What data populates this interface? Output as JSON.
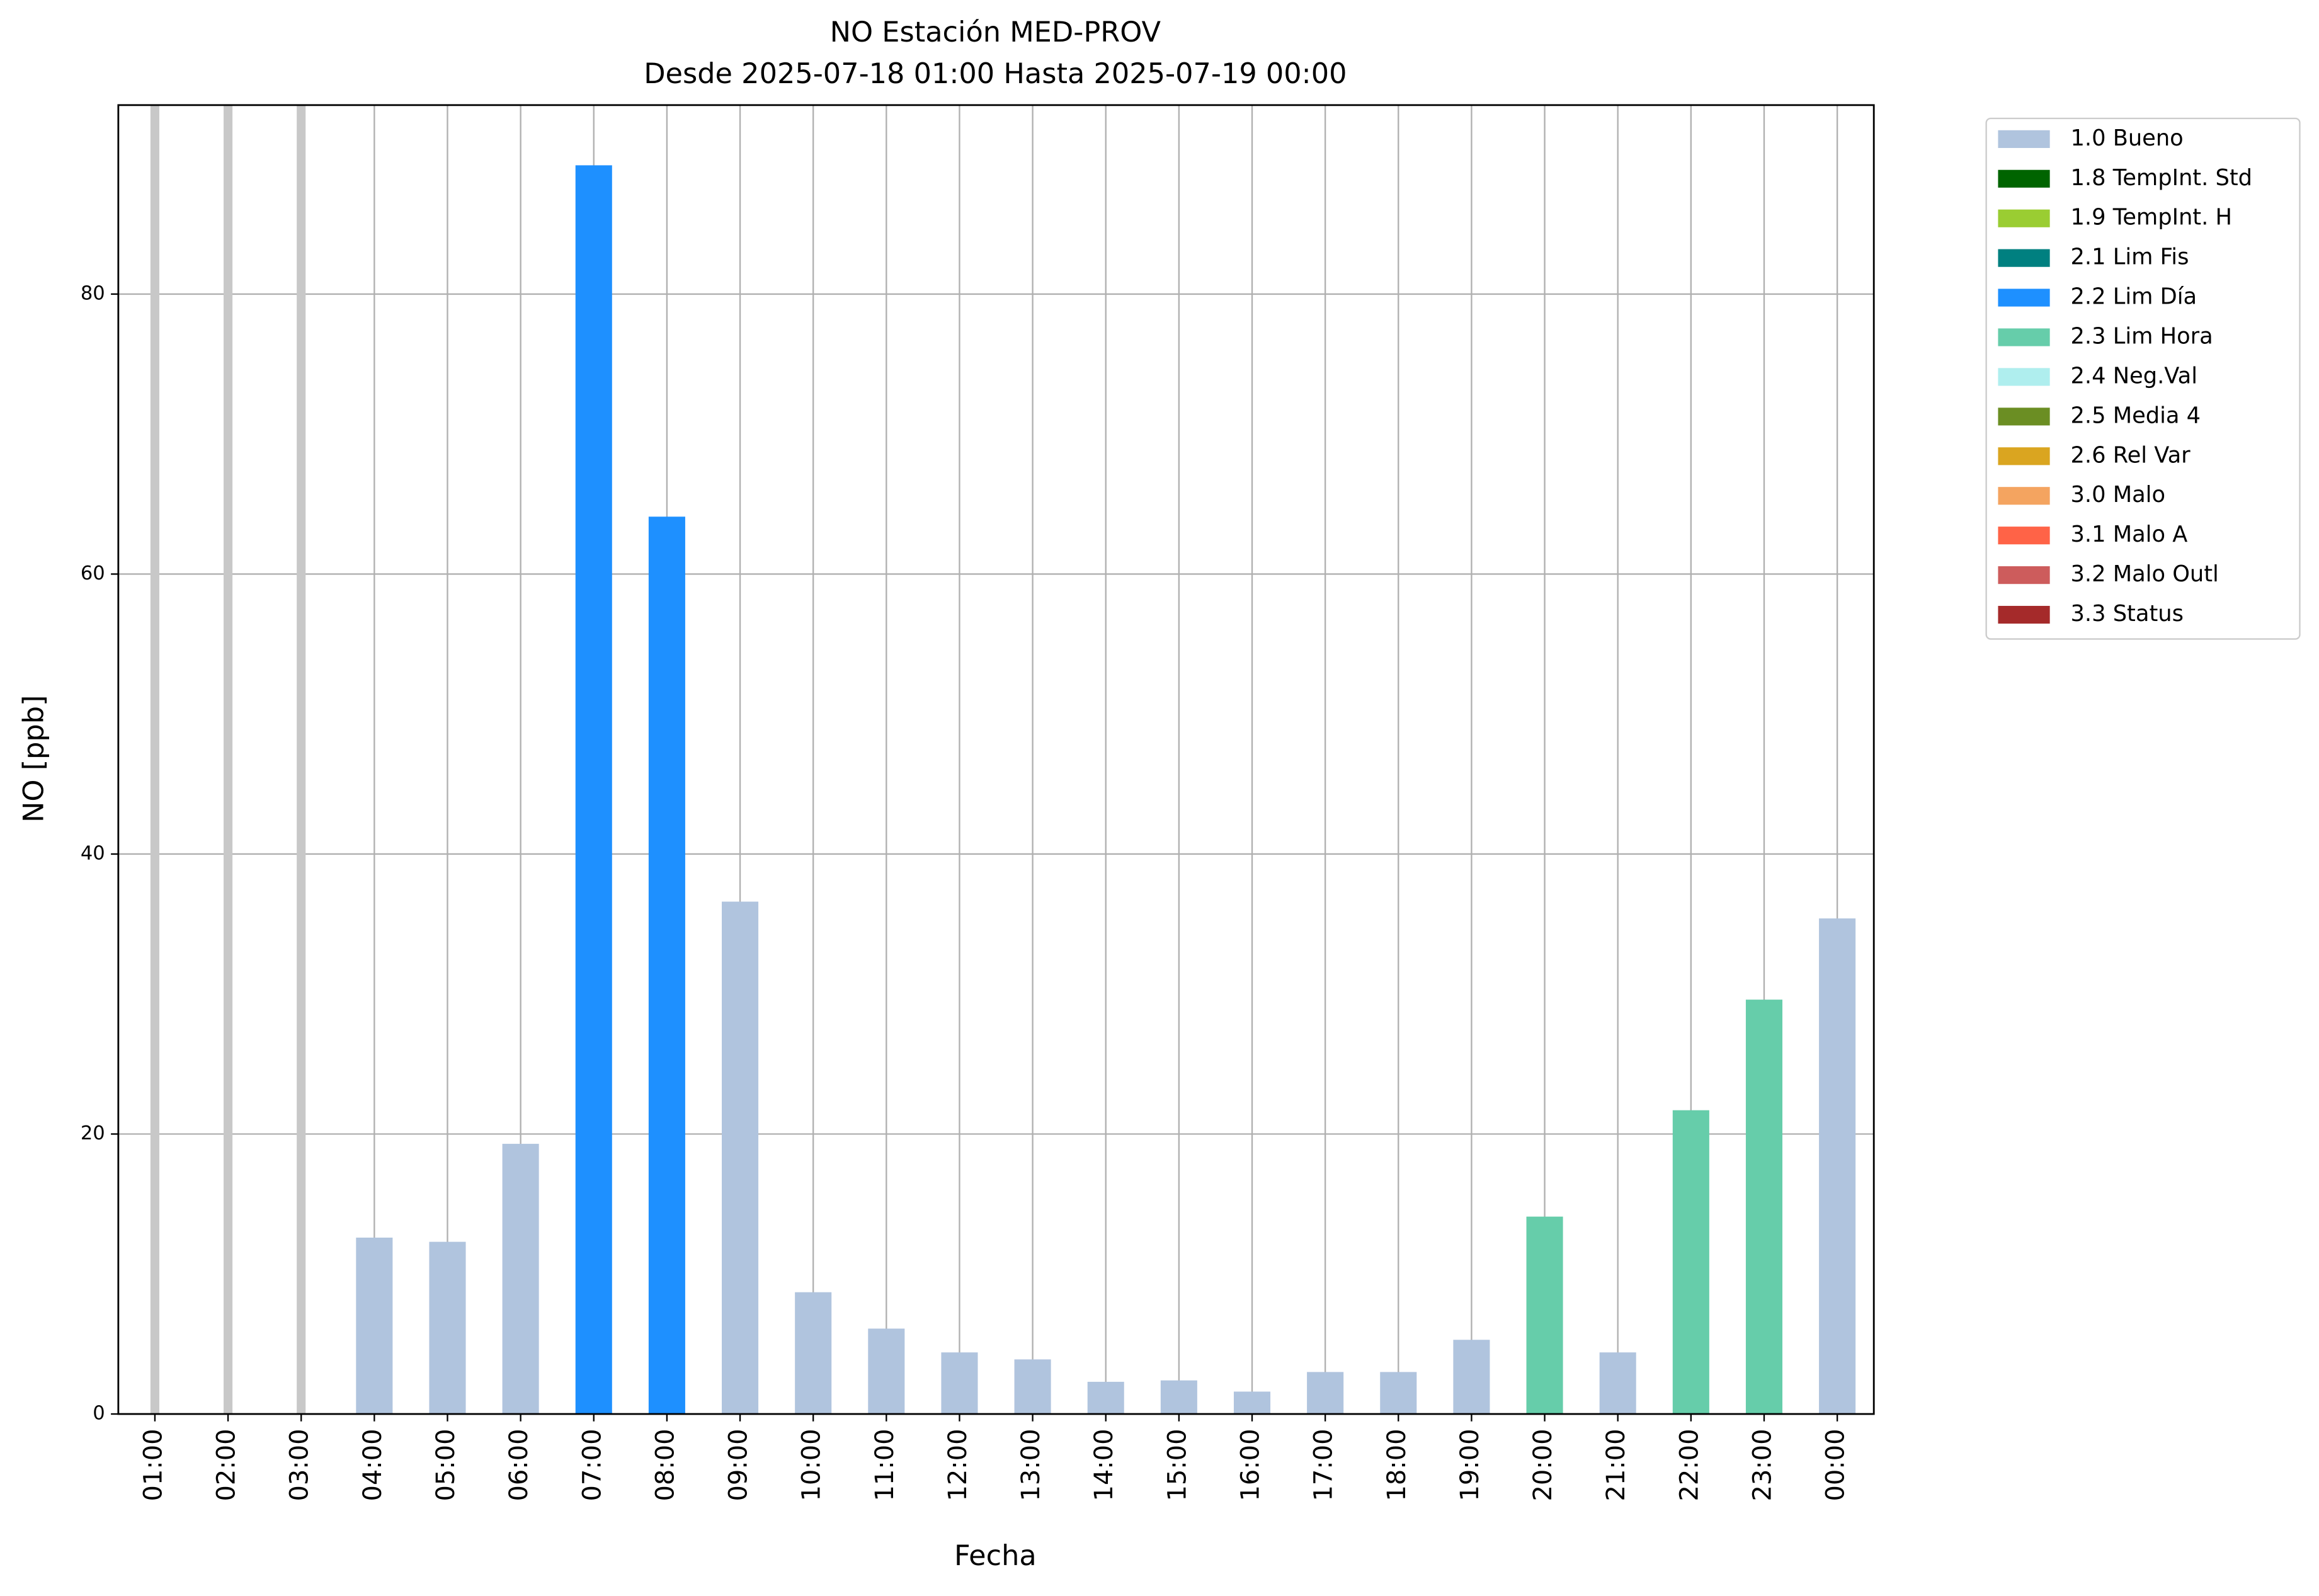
{
  "chart_data": {
    "type": "bar",
    "stacked": true,
    "title": "NO Estación MED-PROV",
    "subtitle": "Desde 2025-07-18 01:00 Hasta 2025-07-19 00:00",
    "x_label": "Fecha",
    "y_label": "NO [ppb]",
    "categories": [
      "01:00",
      "02:00",
      "03:00",
      "04:00",
      "05:00",
      "06:00",
      "07:00",
      "08:00",
      "09:00",
      "10:00",
      "11:00",
      "12:00",
      "13:00",
      "14:00",
      "15:00",
      "16:00",
      "17:00",
      "18:00",
      "19:00",
      "20:00",
      "21:00",
      "22:00",
      "23:00",
      "00:00"
    ],
    "series": [
      {
        "name": "1.0 Bueno",
        "color": "#b0c4de",
        "values": [
          null,
          null,
          null,
          12.6,
          12.3,
          19.3,
          null,
          null,
          36.6,
          8.7,
          6.1,
          4.4,
          3.9,
          2.3,
          2.4,
          1.6,
          3.0,
          3.0,
          5.3,
          null,
          4.4,
          null,
          null,
          35.4
        ]
      },
      {
        "name": "1.8 TempInt. Std",
        "color": "#006400",
        "values": [
          null,
          null,
          null,
          null,
          null,
          null,
          null,
          null,
          null,
          null,
          null,
          null,
          null,
          null,
          null,
          null,
          null,
          null,
          null,
          null,
          null,
          null,
          null,
          null
        ]
      },
      {
        "name": "1.9 TempInt. H",
        "color": "#9acd32",
        "values": [
          null,
          null,
          null,
          null,
          null,
          null,
          null,
          null,
          null,
          null,
          null,
          null,
          null,
          null,
          null,
          null,
          null,
          null,
          null,
          null,
          null,
          null,
          null,
          null
        ]
      },
      {
        "name": "2.1 Lim Fis",
        "color": "#008080",
        "values": [
          null,
          null,
          null,
          null,
          null,
          null,
          null,
          null,
          null,
          null,
          null,
          null,
          null,
          null,
          null,
          null,
          null,
          null,
          null,
          null,
          null,
          null,
          null,
          null
        ]
      },
      {
        "name": "2.2 Lim Día",
        "color": "#1e90ff",
        "values": [
          null,
          null,
          null,
          null,
          null,
          null,
          89.2,
          64.1,
          null,
          null,
          null,
          null,
          null,
          null,
          null,
          null,
          null,
          null,
          null,
          null,
          null,
          null,
          null,
          null
        ]
      },
      {
        "name": "2.3 Lim Hora",
        "color": "#66cdaa",
        "values": [
          null,
          null,
          null,
          null,
          null,
          null,
          null,
          null,
          null,
          null,
          null,
          null,
          null,
          null,
          null,
          null,
          null,
          null,
          null,
          14.1,
          null,
          21.7,
          29.6,
          null
        ]
      },
      {
        "name": "2.4 Neg.Val",
        "color": "#afeeee",
        "values": [
          null,
          null,
          null,
          null,
          null,
          null,
          null,
          null,
          null,
          null,
          null,
          null,
          null,
          null,
          null,
          null,
          null,
          null,
          null,
          null,
          null,
          null,
          null,
          null
        ]
      },
      {
        "name": "2.5 Media 4",
        "color": "#6b8e23",
        "values": [
          null,
          null,
          null,
          null,
          null,
          null,
          null,
          null,
          null,
          null,
          null,
          null,
          null,
          null,
          null,
          null,
          null,
          null,
          null,
          null,
          null,
          null,
          null,
          null
        ]
      },
      {
        "name": "2.6 Rel Var",
        "color": "#daa520",
        "values": [
          null,
          null,
          null,
          null,
          null,
          null,
          null,
          null,
          null,
          null,
          null,
          null,
          null,
          null,
          null,
          null,
          null,
          null,
          null,
          null,
          null,
          null,
          null,
          null
        ]
      },
      {
        "name": "3.0 Malo",
        "color": "#f4a460",
        "values": [
          null,
          null,
          null,
          null,
          null,
          null,
          null,
          null,
          null,
          null,
          null,
          null,
          null,
          null,
          null,
          null,
          null,
          null,
          null,
          null,
          null,
          null,
          null,
          null
        ]
      },
      {
        "name": "3.1 Malo A",
        "color": "#ff6347",
        "values": [
          null,
          null,
          null,
          null,
          null,
          null,
          null,
          null,
          null,
          null,
          null,
          null,
          null,
          null,
          null,
          null,
          null,
          null,
          null,
          null,
          null,
          null,
          null,
          null
        ]
      },
      {
        "name": "3.2 Malo Outl",
        "color": "#cd5c5c",
        "values": [
          null,
          null,
          null,
          null,
          null,
          null,
          null,
          null,
          null,
          null,
          null,
          null,
          null,
          null,
          null,
          null,
          null,
          null,
          null,
          null,
          null,
          null,
          null,
          null
        ]
      },
      {
        "name": "3.3 Status",
        "color": "#a52a2a",
        "values": [
          null,
          null,
          null,
          null,
          null,
          null,
          null,
          null,
          null,
          null,
          null,
          null,
          null,
          null,
          null,
          null,
          null,
          null,
          null,
          null,
          null,
          null,
          null,
          null
        ]
      }
    ],
    "ylim": [
      0,
      93.5
    ],
    "yticks": [
      0,
      20,
      40,
      60,
      80
    ],
    "grid": true,
    "legend": "outside-right"
  }
}
